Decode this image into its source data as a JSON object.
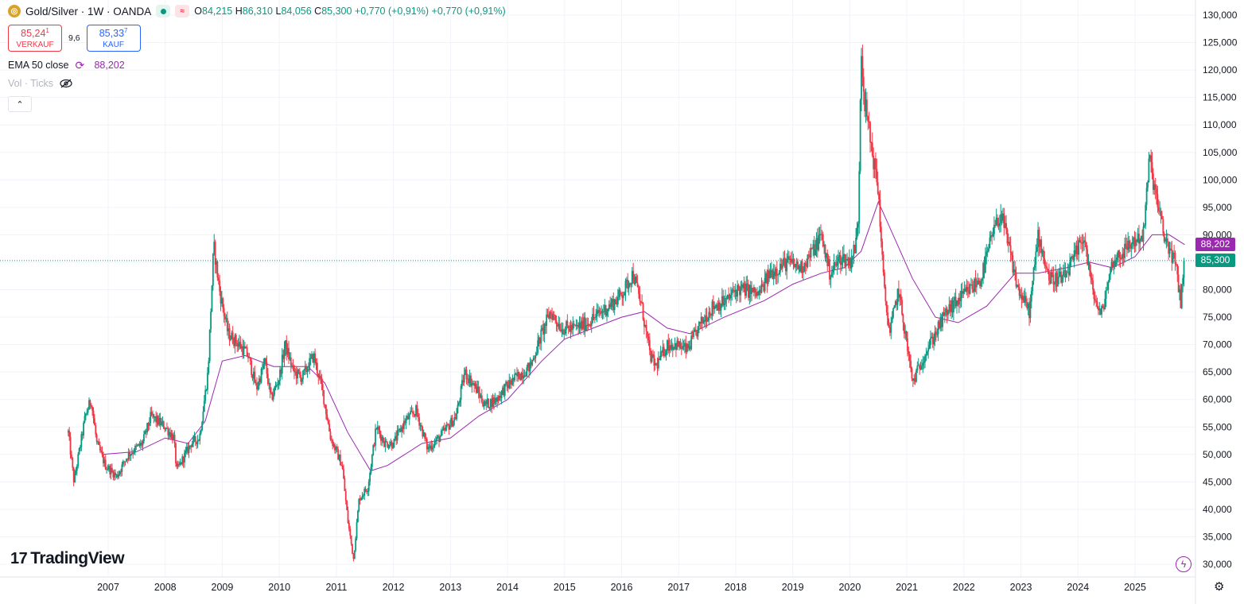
{
  "header": {
    "symbol_icon": "gold-coin-icon",
    "title": "Gold/Silver · 1W · OANDA",
    "market_status_icon": "market-open-dot-icon",
    "wave_icon": "wave-icon",
    "wave_glyph": "≈",
    "ohlc": {
      "o_label": "O",
      "o": "84,215",
      "h_label": "H",
      "h": "86,310",
      "l_label": "L",
      "l": "84,056",
      "c_label": "C",
      "c": "85,300",
      "change1": "+0,770 (+0,91%)",
      "change2": "+0,770 (+0,91%)"
    }
  },
  "trade": {
    "sell_price": "85,24",
    "sell_price_sup": "1",
    "sell_label": "VERKAUF",
    "spread": "9,6",
    "buy_price": "85,33",
    "buy_price_sup": "7",
    "buy_label": "KAUF"
  },
  "indicator": {
    "name": "EMA 50 close",
    "value": "88,202",
    "icon": "refresh-icon",
    "glyph": "⟳"
  },
  "volume": {
    "label": "Vol · Ticks",
    "icon": "eye-off-icon"
  },
  "collapse_glyph": "⌃",
  "logo_mark": "17",
  "logo_text": "TradingView",
  "price_tags": {
    "ema": "88,202",
    "last": "85,300"
  },
  "lightning_glyph": "ϟ",
  "gear_glyph": "⚙",
  "colors": {
    "up": "#089981",
    "down": "#f23645",
    "ema": "#9c27b0",
    "grid": "#f0f3fa",
    "text": "#131722"
  },
  "chart_data": {
    "type": "candlestick",
    "timeframe": "1W",
    "y_axis": {
      "min": 30000,
      "max": 130000,
      "step": 5000,
      "ticks": [
        "130,000",
        "125,000",
        "120,000",
        "115,000",
        "110,000",
        "105,000",
        "100,000",
        "95,000",
        "90,000",
        "85,000",
        "80,000",
        "75,000",
        "70,000",
        "65,000",
        "60,000",
        "55,000",
        "50,000",
        "45,000",
        "40,000",
        "35,000",
        "30,000"
      ]
    },
    "x_axis": {
      "ticks": [
        "2007",
        "2008",
        "2009",
        "2010",
        "2011",
        "2012",
        "2013",
        "2014",
        "2015",
        "2016",
        "2017",
        "2018",
        "2019",
        "2020",
        "2021",
        "2022",
        "2023",
        "2024",
        "2025"
      ]
    },
    "series_path": [
      [
        2006.3,
        54
      ],
      [
        2006.4,
        45
      ],
      [
        2006.6,
        57
      ],
      [
        2006.7,
        60
      ],
      [
        2006.8,
        52
      ],
      [
        2006.95,
        48
      ],
      [
        2007.15,
        46
      ],
      [
        2007.35,
        50
      ],
      [
        2007.6,
        52
      ],
      [
        2007.75,
        57
      ],
      [
        2008.0,
        55
      ],
      [
        2008.15,
        53
      ],
      [
        2008.2,
        47
      ],
      [
        2008.45,
        52
      ],
      [
        2008.6,
        53
      ],
      [
        2008.75,
        65
      ],
      [
        2008.85,
        88
      ],
      [
        2008.95,
        80
      ],
      [
        2009.1,
        72
      ],
      [
        2009.3,
        70
      ],
      [
        2009.45,
        68
      ],
      [
        2009.6,
        62
      ],
      [
        2009.75,
        67
      ],
      [
        2009.85,
        60
      ],
      [
        2010.0,
        64
      ],
      [
        2010.1,
        70
      ],
      [
        2010.25,
        65
      ],
      [
        2010.4,
        64
      ],
      [
        2010.6,
        68
      ],
      [
        2010.75,
        62
      ],
      [
        2010.9,
        53
      ],
      [
        2011.1,
        48
      ],
      [
        2011.2,
        38
      ],
      [
        2011.3,
        31
      ],
      [
        2011.4,
        42
      ],
      [
        2011.55,
        44
      ],
      [
        2011.7,
        55
      ],
      [
        2011.85,
        52
      ],
      [
        2012.0,
        52
      ],
      [
        2012.2,
        56
      ],
      [
        2012.4,
        58
      ],
      [
        2012.6,
        51
      ],
      [
        2012.8,
        53
      ],
      [
        2012.95,
        55
      ],
      [
        2013.1,
        57
      ],
      [
        2013.25,
        65
      ],
      [
        2013.45,
        62
      ],
      [
        2013.6,
        59
      ],
      [
        2013.8,
        60
      ],
      [
        2013.95,
        62
      ],
      [
        2014.15,
        64
      ],
      [
        2014.4,
        66
      ],
      [
        2014.6,
        72
      ],
      [
        2014.75,
        76
      ],
      [
        2014.95,
        73
      ],
      [
        2015.2,
        73
      ],
      [
        2015.4,
        74
      ],
      [
        2015.65,
        76
      ],
      [
        2015.9,
        78
      ],
      [
        2016.05,
        80
      ],
      [
        2016.2,
        83
      ],
      [
        2016.35,
        77
      ],
      [
        2016.5,
        68
      ],
      [
        2016.6,
        66
      ],
      [
        2016.8,
        70
      ],
      [
        2016.95,
        70
      ],
      [
        2017.15,
        69
      ],
      [
        2017.4,
        74
      ],
      [
        2017.6,
        77
      ],
      [
        2017.85,
        78
      ],
      [
        2018.0,
        80
      ],
      [
        2018.2,
        80
      ],
      [
        2018.4,
        79
      ],
      [
        2018.6,
        83
      ],
      [
        2018.9,
        85
      ],
      [
        2019.15,
        84
      ],
      [
        2019.35,
        87
      ],
      [
        2019.5,
        90
      ],
      [
        2019.65,
        83
      ],
      [
        2019.85,
        86
      ],
      [
        2020.0,
        85
      ],
      [
        2020.1,
        88
      ],
      [
        2020.15,
        93
      ],
      [
        2020.2,
        125
      ],
      [
        2020.25,
        115
      ],
      [
        2020.35,
        108
      ],
      [
        2020.5,
        98
      ],
      [
        2020.6,
        80
      ],
      [
        2020.7,
        72
      ],
      [
        2020.85,
        80
      ],
      [
        2021.0,
        70
      ],
      [
        2021.1,
        63
      ],
      [
        2021.3,
        68
      ],
      [
        2021.5,
        72
      ],
      [
        2021.7,
        76
      ],
      [
        2021.9,
        78
      ],
      [
        2022.1,
        80
      ],
      [
        2022.3,
        82
      ],
      [
        2022.5,
        90
      ],
      [
        2022.65,
        94
      ],
      [
        2022.8,
        87
      ],
      [
        2022.95,
        80
      ],
      [
        2023.15,
        76
      ],
      [
        2023.3,
        90
      ],
      [
        2023.5,
        82
      ],
      [
        2023.75,
        82
      ],
      [
        2023.95,
        86
      ],
      [
        2024.1,
        90
      ],
      [
        2024.25,
        80
      ],
      [
        2024.4,
        75
      ],
      [
        2024.6,
        85
      ],
      [
        2024.8,
        87
      ],
      [
        2025.0,
        89
      ],
      [
        2025.15,
        90
      ],
      [
        2025.25,
        104
      ],
      [
        2025.35,
        98
      ],
      [
        2025.5,
        90
      ],
      [
        2025.7,
        85
      ],
      [
        2025.8,
        78
      ],
      [
        2025.87,
        85.3
      ]
    ],
    "ema_path": [
      [
        2006.9,
        50
      ],
      [
        2007.5,
        50.5
      ],
      [
        2008.0,
        53
      ],
      [
        2008.4,
        52
      ],
      [
        2008.7,
        56
      ],
      [
        2009.0,
        67
      ],
      [
        2009.4,
        68
      ],
      [
        2009.9,
        66
      ],
      [
        2010.5,
        66
      ],
      [
        2010.8,
        63
      ],
      [
        2011.2,
        54
      ],
      [
        2011.6,
        47
      ],
      [
        2011.9,
        48
      ],
      [
        2012.5,
        52
      ],
      [
        2013.0,
        53
      ],
      [
        2013.5,
        57
      ],
      [
        2014.0,
        60
      ],
      [
        2014.6,
        67
      ],
      [
        2015.0,
        71
      ],
      [
        2015.5,
        73
      ],
      [
        2016.0,
        75
      ],
      [
        2016.4,
        76
      ],
      [
        2016.8,
        73
      ],
      [
        2017.2,
        72
      ],
      [
        2017.8,
        75
      ],
      [
        2018.5,
        78
      ],
      [
        2019.0,
        81
      ],
      [
        2019.5,
        83
      ],
      [
        2019.9,
        84
      ],
      [
        2020.2,
        87
      ],
      [
        2020.5,
        96
      ],
      [
        2020.8,
        89
      ],
      [
        2021.1,
        82
      ],
      [
        2021.5,
        75
      ],
      [
        2021.9,
        74
      ],
      [
        2022.4,
        77
      ],
      [
        2022.9,
        83
      ],
      [
        2023.3,
        83
      ],
      [
        2023.8,
        84
      ],
      [
        2024.2,
        85
      ],
      [
        2024.6,
        84
      ],
      [
        2025.0,
        86
      ],
      [
        2025.3,
        90
      ],
      [
        2025.6,
        90
      ],
      [
        2025.87,
        88.2
      ]
    ],
    "last_price": 85.3,
    "ema_last": 88.202,
    "ema_label": "EMA 50 close"
  }
}
